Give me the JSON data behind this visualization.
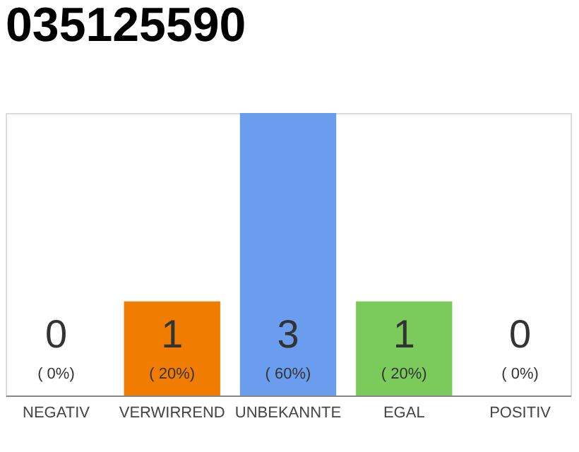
{
  "chart_data": {
    "type": "bar",
    "title": "035125590",
    "categories": [
      "NEGATIV",
      "VERWIRREND",
      "UNBEKANNTE",
      "EGAL",
      "POSITIV"
    ],
    "values": [
      0,
      1,
      3,
      1,
      0
    ],
    "colors": [
      "#999999",
      "#f07d02",
      "#6a9ded",
      "#7bcb5c",
      "#999999"
    ],
    "data_labels": true,
    "annotations": [
      "( 0%)",
      "( 20%)",
      "( 60%)",
      "( 20%)",
      "( 0%)"
    ],
    "tick_labels": "x"
  }
}
